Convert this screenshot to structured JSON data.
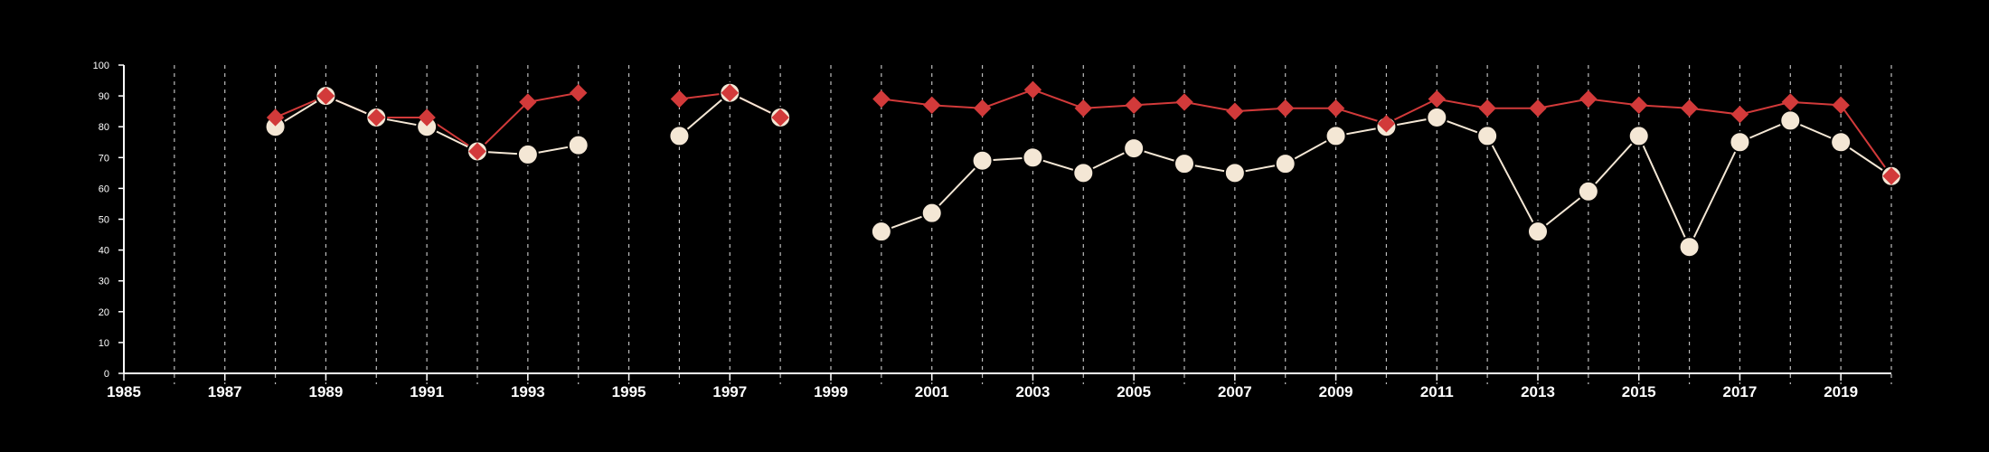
{
  "chart_data": {
    "type": "line",
    "title": "",
    "xlabel": "",
    "ylabel": "",
    "xlim": [
      1985,
      2020
    ],
    "ylim": [
      0,
      100
    ],
    "y_ticks": [
      0,
      10,
      20,
      30,
      40,
      50,
      60,
      70,
      80,
      90,
      100
    ],
    "x_ticks": [
      1985,
      1987,
      1989,
      1991,
      1993,
      1995,
      1997,
      1999,
      2001,
      2003,
      2005,
      2007,
      2009,
      2011,
      2013,
      2015,
      2017,
      2019
    ],
    "grid": "vertical dashed lines at every year",
    "legend": "none",
    "series": [
      {
        "marker": "diamond",
        "color": "#d23a3a",
        "values": [
          [
            1988,
            83
          ],
          [
            1989,
            90
          ],
          [
            1990,
            83
          ],
          [
            1991,
            83
          ],
          [
            1992,
            72
          ],
          [
            1993,
            88
          ],
          [
            1994,
            91
          ],
          [
            1996,
            89
          ],
          [
            1997,
            91
          ],
          [
            1998,
            83
          ],
          [
            2000,
            89
          ],
          [
            2001,
            87
          ],
          [
            2002,
            86
          ],
          [
            2003,
            92
          ],
          [
            2004,
            86
          ],
          [
            2005,
            87
          ],
          [
            2006,
            88
          ],
          [
            2007,
            85
          ],
          [
            2008,
            86
          ],
          [
            2009,
            86
          ],
          [
            2010,
            81
          ],
          [
            2011,
            89
          ],
          [
            2012,
            86
          ],
          [
            2013,
            86
          ],
          [
            2014,
            89
          ],
          [
            2015,
            87
          ],
          [
            2016,
            86
          ],
          [
            2017,
            84
          ],
          [
            2018,
            88
          ],
          [
            2019,
            87
          ],
          [
            2020,
            64
          ]
        ]
      },
      {
        "marker": "circle",
        "color": "#f4e7d5",
        "values": [
          [
            1988,
            80
          ],
          [
            1989,
            90
          ],
          [
            1990,
            83
          ],
          [
            1991,
            80
          ],
          [
            1992,
            72
          ],
          [
            1993,
            71
          ],
          [
            1994,
            74
          ],
          [
            1996,
            77
          ],
          [
            1997,
            91
          ],
          [
            1998,
            83
          ],
          [
            2000,
            46
          ],
          [
            2001,
            52
          ],
          [
            2002,
            69
          ],
          [
            2003,
            70
          ],
          [
            2004,
            65
          ],
          [
            2005,
            73
          ],
          [
            2006,
            68
          ],
          [
            2007,
            65
          ],
          [
            2008,
            68
          ],
          [
            2009,
            77
          ],
          [
            2010,
            80
          ],
          [
            2011,
            83
          ],
          [
            2012,
            77
          ],
          [
            2013,
            46
          ],
          [
            2014,
            59
          ],
          [
            2015,
            77
          ],
          [
            2016,
            41
          ],
          [
            2017,
            75
          ],
          [
            2018,
            82
          ],
          [
            2019,
            75
          ],
          [
            2020,
            64
          ]
        ]
      }
    ]
  }
}
